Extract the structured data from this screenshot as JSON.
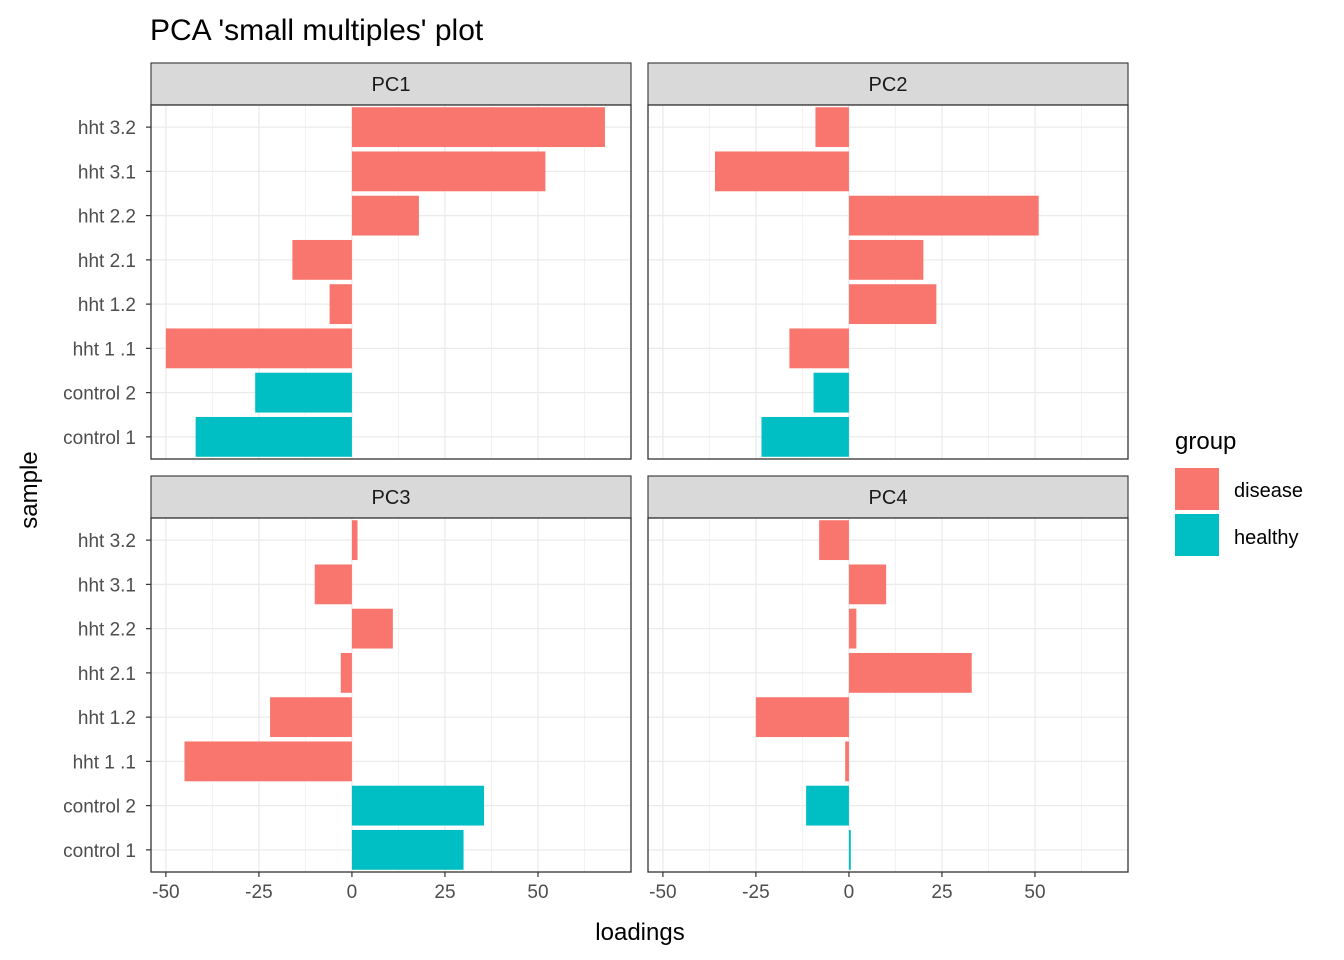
{
  "chart_data": {
    "type": "bar",
    "orientation": "horizontal",
    "title": "PCA 'small multiples' plot",
    "xlabel": "loadings",
    "ylabel": "sample",
    "xlim": [
      -54,
      75
    ],
    "x_ticks": [
      -50,
      -25,
      0,
      25,
      50
    ],
    "x_tick_labels": [
      "-50",
      "-25",
      "0",
      "25",
      "50"
    ],
    "categories": [
      "hht 3.2",
      "hht 3.1",
      "hht 2.2",
      "hht 2.1",
      "hht 1.2",
      "hht 1 .1",
      "control 2",
      "control 1"
    ],
    "groups": [
      "disease",
      "disease",
      "disease",
      "disease",
      "disease",
      "disease",
      "healthy",
      "healthy"
    ],
    "grid": true,
    "legend": {
      "title": "group",
      "position": "right",
      "entries": [
        {
          "label": "disease",
          "color": "#F8766D"
        },
        {
          "label": "healthy",
          "color": "#00BFC4"
        }
      ]
    },
    "panels": [
      {
        "label": "PC1",
        "values": [
          68,
          52,
          18,
          -16,
          -6,
          -50,
          -26,
          -42
        ]
      },
      {
        "label": "PC2",
        "values": [
          -9,
          -36,
          51,
          20,
          23.5,
          -16,
          -9.5,
          -23.5
        ]
      },
      {
        "label": "PC3",
        "values": [
          1.5,
          -10,
          11,
          -3,
          -22,
          -45,
          35.5,
          30
        ]
      },
      {
        "label": "PC4",
        "values": [
          -8,
          10,
          2,
          33,
          -25,
          -1,
          -11.5,
          0.5
        ]
      }
    ]
  }
}
